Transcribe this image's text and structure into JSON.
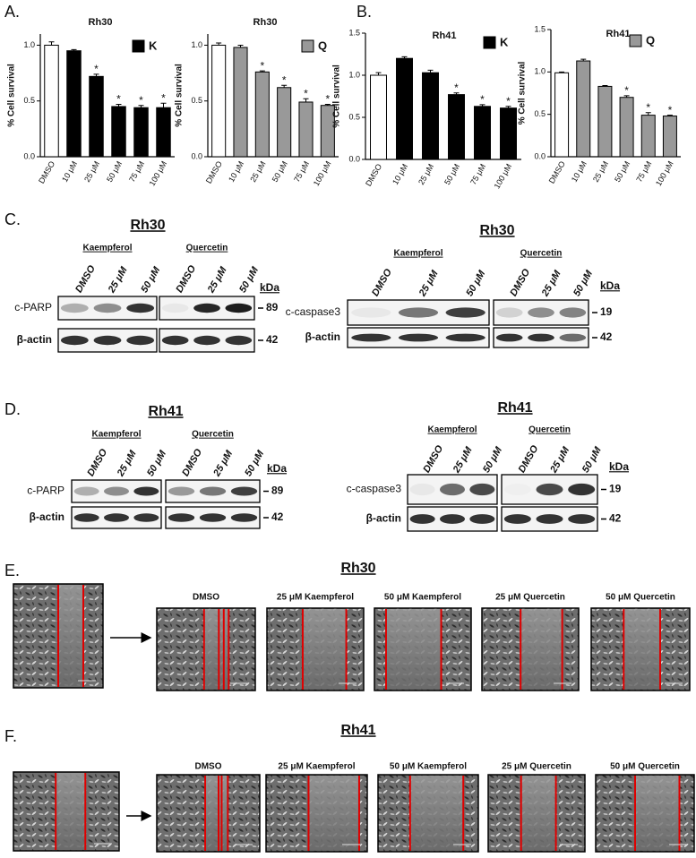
{
  "chart_data": [
    {
      "type": "bar",
      "panel": "A.",
      "title": "Rh30",
      "y_label": "% Cell survival",
      "legend": {
        "label": "K",
        "color": "#000000"
      },
      "categories": [
        "DMSO",
        "10 μM",
        "25 μM",
        "50 μM",
        "75 μM",
        "100 μM"
      ],
      "values": [
        1.0,
        0.95,
        0.72,
        0.45,
        0.44,
        0.44
      ],
      "errors": [
        0.03,
        0.01,
        0.02,
        0.02,
        0.02,
        0.04
      ],
      "colors": [
        "#ffffff",
        "#000000",
        "#000000",
        "#000000",
        "#000000",
        "#000000"
      ],
      "ylim": [
        0,
        1.1
      ],
      "yticks": [
        {
          "value": 0,
          "label": "0.0"
        },
        {
          "value": 0.5,
          "label": "0.5"
        },
        {
          "value": 1,
          "label": "1.0"
        }
      ],
      "annotation": "*",
      "annotated": [
        2,
        3,
        4,
        5
      ]
    },
    {
      "type": "bar",
      "title": "Rh30",
      "y_label": "% Cell survival",
      "legend": {
        "label": "Q",
        "color": "#999999"
      },
      "categories": [
        "DMSO",
        "10 μM",
        "25 μM",
        "50 μM",
        "75 μM",
        "100 μM"
      ],
      "values": [
        1.0,
        0.98,
        0.76,
        0.62,
        0.49,
        0.46
      ],
      "errors": [
        0.02,
        0.02,
        0.01,
        0.02,
        0.03,
        0.01
      ],
      "colors": [
        "#ffffff",
        "#999999",
        "#999999",
        "#999999",
        "#999999",
        "#999999"
      ],
      "ylim": [
        0,
        1.1
      ],
      "yticks": [
        {
          "value": 0,
          "label": "0.0"
        },
        {
          "value": 0.5,
          "label": "0.5"
        },
        {
          "value": 1,
          "label": "1.0"
        }
      ],
      "annotation": "*",
      "annotated": [
        2,
        3,
        4,
        5
      ]
    },
    {
      "type": "bar",
      "panel": "B.",
      "title": "Rh41",
      "y_label": "% Cell survival",
      "legend": {
        "label": "K",
        "color": "#000000"
      },
      "categories": [
        "DMSO",
        "10 μM",
        "25 μM",
        "50 μM",
        "75 μM",
        "100 μM"
      ],
      "values": [
        1.0,
        1.2,
        1.03,
        0.77,
        0.63,
        0.61
      ],
      "errors": [
        0.03,
        0.02,
        0.03,
        0.02,
        0.02,
        0.02
      ],
      "colors": [
        "#ffffff",
        "#000000",
        "#000000",
        "#000000",
        "#000000",
        "#000000"
      ],
      "ylim": [
        0,
        1.5
      ],
      "yticks": [
        {
          "value": 0,
          "label": "0.0"
        },
        {
          "value": 0.5,
          "label": "0.5"
        },
        {
          "value": 1,
          "label": "1.0"
        },
        {
          "value": 1.5,
          "label": "1.5"
        }
      ],
      "annotation": "*",
      "annotated": [
        3,
        4,
        5
      ]
    },
    {
      "type": "bar",
      "title": "Rh41",
      "y_label": "% Cell survival",
      "legend": {
        "label": "Q",
        "color": "#999999"
      },
      "categories": [
        "DMSO",
        "10 μM",
        "25 μM",
        "50 μM",
        "75 μM",
        "100 μM"
      ],
      "values": [
        0.99,
        1.13,
        0.83,
        0.7,
        0.49,
        0.48
      ],
      "errors": [
        0.01,
        0.02,
        0.01,
        0.02,
        0.03,
        0.01
      ],
      "colors": [
        "#ffffff",
        "#999999",
        "#999999",
        "#999999",
        "#999999",
        "#999999"
      ],
      "ylim": [
        0,
        1.5
      ],
      "yticks": [
        {
          "value": 0,
          "label": "0.0"
        },
        {
          "value": 0.5,
          "label": "0.5"
        },
        {
          "value": 1,
          "label": "1.0"
        },
        {
          "value": 1.5,
          "label": "1.5"
        }
      ],
      "annotation": "*",
      "annotated": [
        3,
        4,
        5
      ]
    }
  ],
  "blots": [
    {
      "panel": "C.",
      "cell_line": "Rh30",
      "groups": [
        "Kaempferol",
        "Quercetin"
      ],
      "lanes": [
        "DMSO",
        "25 μM",
        "50 μM"
      ],
      "kda_label": "kDa",
      "rows": [
        {
          "label": "c-PARP",
          "kda": "89"
        },
        {
          "label": "β-actin",
          "kda": "42"
        }
      ]
    },
    {
      "cell_line": "Rh30",
      "groups": [
        "Kaempferol",
        "Quercetin"
      ],
      "lanes": [
        "DMSO",
        "25 μM",
        "50 μM"
      ],
      "kda_label": "kDa",
      "rows": [
        {
          "label": "c-caspase3",
          "kda": "19"
        },
        {
          "label": "β-actin",
          "kda": "42"
        }
      ]
    },
    {
      "panel": "D.",
      "cell_line": "Rh41",
      "groups": [
        "Kaempferol",
        "Quercetin"
      ],
      "lanes": [
        "DMSO",
        "25 μM",
        "50 μM"
      ],
      "kda_label": "kDa",
      "rows": [
        {
          "label": "c-PARP",
          "kda": "89"
        },
        {
          "label": "β-actin",
          "kda": "42"
        }
      ]
    },
    {
      "cell_line": "Rh41",
      "groups": [
        "Kaempferol",
        "Quercetin"
      ],
      "lanes": [
        "DMSO",
        "25 μM",
        "50 μM"
      ],
      "kda_label": "kDa",
      "rows": [
        {
          "label": "c-caspase3",
          "kda": "19"
        },
        {
          "label": "β-actin",
          "kda": "42"
        }
      ]
    }
  ],
  "wound_assays": [
    {
      "panel": "E.",
      "cell_line": "Rh30",
      "conditions": [
        "DMSO",
        "25 μM Kaempferol",
        "50 μM Kaempferol",
        "25 μM Quercetin",
        "50 μM Quercetin"
      ]
    },
    {
      "panel": "F.",
      "cell_line": "Rh41",
      "conditions": [
        "DMSO",
        "25 μM Kaempferol",
        "50 μM Kaempferol",
        "25 μM Quercetin",
        "50 μM Quercetin"
      ]
    }
  ]
}
